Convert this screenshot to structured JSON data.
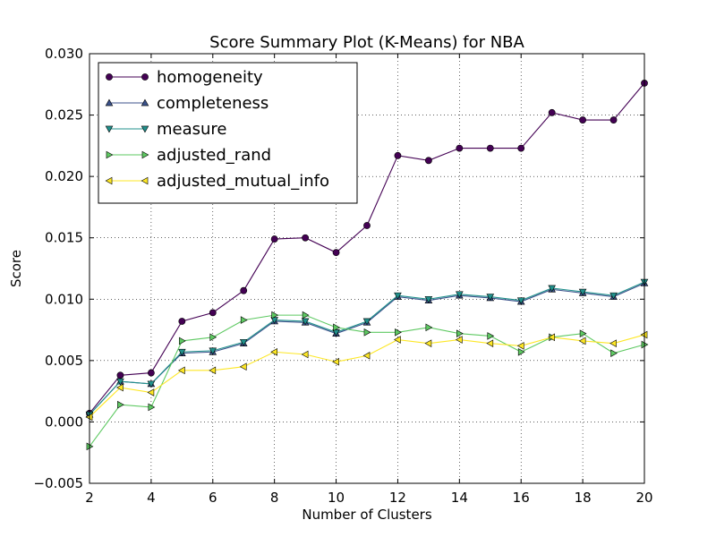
{
  "chart_data": {
    "type": "line",
    "title": "Score Summary Plot (K-Means) for NBA",
    "xlabel": "Number of Clusters",
    "ylabel": "Score",
    "xlim": [
      2,
      20
    ],
    "ylim": [
      -0.005,
      0.03
    ],
    "x_ticks": [
      2,
      4,
      6,
      8,
      10,
      12,
      14,
      16,
      18,
      20
    ],
    "y_ticks": [
      -0.005,
      0.0,
      0.005,
      0.01,
      0.015,
      0.02,
      0.025,
      0.03
    ],
    "y_tick_labels": [
      "−0.005",
      "0.000",
      "0.005",
      "0.010",
      "0.015",
      "0.020",
      "0.025",
      "0.030"
    ],
    "grid": true,
    "legend_position": "top-left",
    "x": [
      2,
      3,
      4,
      5,
      6,
      7,
      8,
      9,
      10,
      11,
      12,
      13,
      14,
      15,
      16,
      17,
      18,
      19,
      20
    ],
    "series": [
      {
        "name": "homogeneity",
        "marker": "circle",
        "color": "#440154",
        "values": [
          0.0007,
          0.0038,
          0.004,
          0.0082,
          0.0089,
          0.0107,
          0.0149,
          0.015,
          0.0138,
          0.016,
          0.0217,
          0.0213,
          0.0223,
          0.0223,
          0.0223,
          0.0252,
          0.0246,
          0.0246,
          0.0276
        ]
      },
      {
        "name": "completeness",
        "marker": "triangle-up",
        "color": "#3b528b",
        "values": [
          0.0006,
          0.0033,
          0.0031,
          0.0056,
          0.0057,
          0.0064,
          0.0082,
          0.0081,
          0.0072,
          0.0081,
          0.0102,
          0.0099,
          0.0103,
          0.0101,
          0.0098,
          0.0108,
          0.0105,
          0.0102,
          0.0113
        ]
      },
      {
        "name": "measure",
        "marker": "triangle-down",
        "color": "#21918c",
        "values": [
          0.0006,
          0.0033,
          0.0031,
          0.0057,
          0.0058,
          0.0065,
          0.0083,
          0.0082,
          0.0073,
          0.0082,
          0.0103,
          0.01,
          0.0104,
          0.0102,
          0.0099,
          0.0109,
          0.0106,
          0.0103,
          0.0114
        ]
      },
      {
        "name": "adjusted_rand",
        "marker": "triangle-right",
        "color": "#5ec962",
        "values": [
          -0.002,
          0.0014,
          0.0012,
          0.0066,
          0.0069,
          0.0083,
          0.0087,
          0.0087,
          0.0077,
          0.0073,
          0.0073,
          0.0077,
          0.0072,
          0.007,
          0.0057,
          0.0069,
          0.0072,
          0.0056,
          0.0063
        ]
      },
      {
        "name": "adjusted_mutual_info",
        "marker": "triangle-left",
        "color": "#fde725",
        "values": [
          0.0004,
          0.0028,
          0.0024,
          0.0042,
          0.0042,
          0.0045,
          0.0057,
          0.0055,
          0.0049,
          0.0054,
          0.0067,
          0.0064,
          0.0067,
          0.0064,
          0.0062,
          0.0069,
          0.0066,
          0.0064,
          0.0071
        ]
      }
    ]
  }
}
